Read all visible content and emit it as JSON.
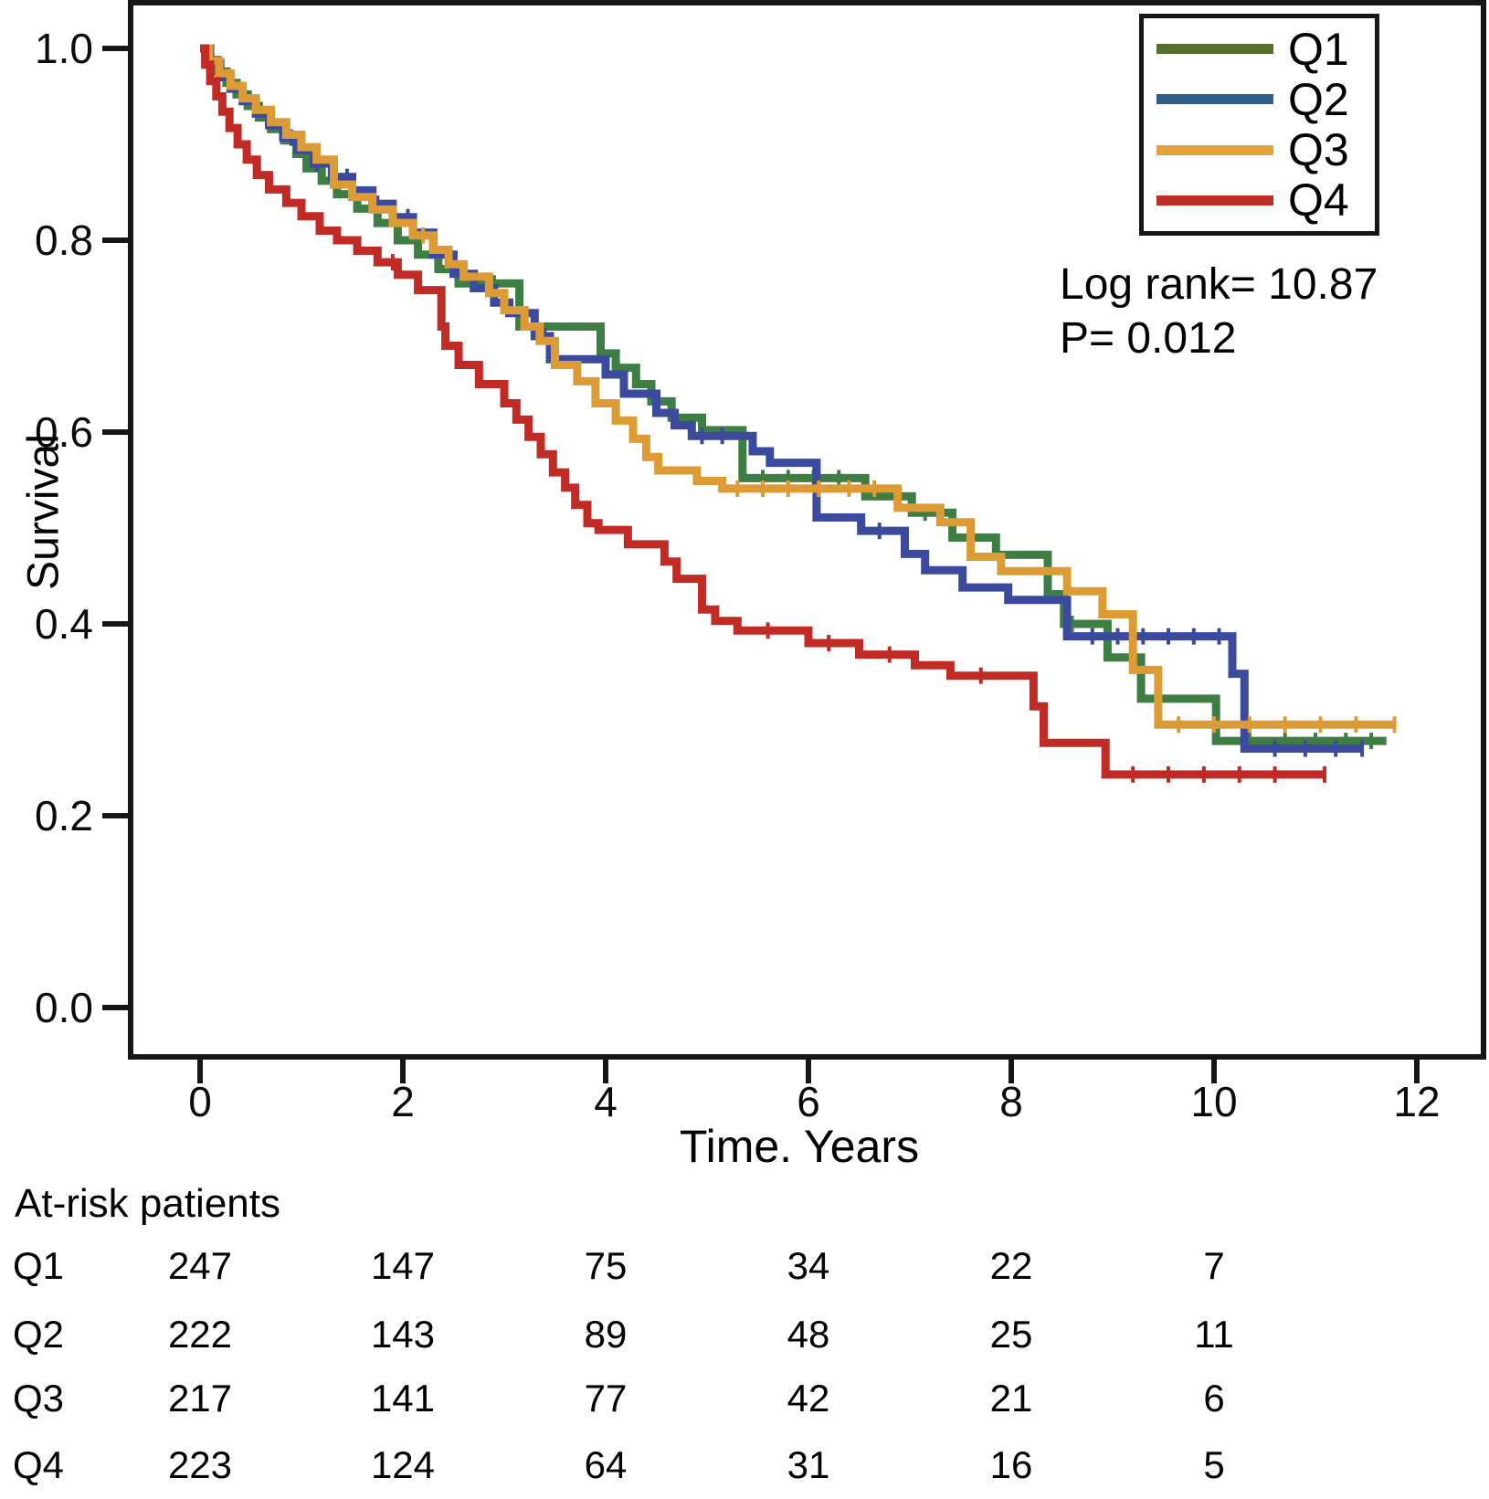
{
  "chart_data": {
    "type": "line",
    "subtype": "kaplan-meier-step-curves",
    "title": "",
    "xlabel": "Time. Years",
    "ylabel": "Survival",
    "xlim": [
      -0.68,
      12.66
    ],
    "ylim": [
      -0.05,
      1.05
    ],
    "xticks": [
      0,
      2,
      4,
      6,
      8,
      10,
      12
    ],
    "yticks": [
      0.0,
      0.2,
      0.4,
      0.6,
      0.8,
      1.0
    ],
    "grid": "off",
    "legend_position": "top-right",
    "frame_color": "#161616",
    "annotations": [
      "Log rank= 10.87",
      "P= 0.012"
    ],
    "series": [
      {
        "name": "Q1",
        "color": "#3e7d44",
        "legend_color": "#546f2c",
        "steps": [
          [
            0,
            1.0
          ],
          [
            0.08,
            0.988
          ],
          [
            0.17,
            0.976
          ],
          [
            0.26,
            0.964
          ],
          [
            0.36,
            0.952
          ],
          [
            0.47,
            0.94
          ],
          [
            0.58,
            0.928
          ],
          [
            0.7,
            0.916
          ],
          [
            0.83,
            0.904
          ],
          [
            0.95,
            0.89
          ],
          [
            1.05,
            0.875
          ],
          [
            1.2,
            0.862
          ],
          [
            1.35,
            0.848
          ],
          [
            1.55,
            0.833
          ],
          [
            1.75,
            0.818
          ],
          [
            1.95,
            0.8
          ],
          [
            2.15,
            0.785
          ],
          [
            2.35,
            0.77
          ],
          [
            2.55,
            0.755
          ],
          [
            3.15,
            0.71
          ],
          [
            3.95,
            0.682
          ],
          [
            4.1,
            0.667
          ],
          [
            4.3,
            0.65
          ],
          [
            4.45,
            0.632
          ],
          [
            4.65,
            0.615
          ],
          [
            4.95,
            0.602
          ],
          [
            5.35,
            0.552
          ],
          [
            6.56,
            0.533
          ],
          [
            7.02,
            0.516
          ],
          [
            7.42,
            0.49
          ],
          [
            7.85,
            0.472
          ],
          [
            8.36,
            0.431
          ],
          [
            8.52,
            0.4
          ],
          [
            8.95,
            0.365
          ],
          [
            9.28,
            0.322
          ],
          [
            10.02,
            0.278
          ],
          [
            11.7,
            0.278
          ]
        ],
        "censors": [
          2.9,
          5.55,
          5.8,
          6.05,
          6.3,
          6.9,
          7.15,
          8.6,
          10.35,
          10.7,
          11.0,
          11.3,
          11.55
        ]
      },
      {
        "name": "Q2",
        "color": "#3c4a9e",
        "legend_color": "#2f5f8a",
        "steps": [
          [
            0,
            1.0
          ],
          [
            0.1,
            0.985
          ],
          [
            0.2,
            0.97
          ],
          [
            0.3,
            0.958
          ],
          [
            0.42,
            0.945
          ],
          [
            0.55,
            0.932
          ],
          [
            0.68,
            0.92
          ],
          [
            0.82,
            0.907
          ],
          [
            0.96,
            0.894
          ],
          [
            1.12,
            0.88
          ],
          [
            1.3,
            0.866
          ],
          [
            1.5,
            0.852
          ],
          [
            1.7,
            0.838
          ],
          [
            1.9,
            0.824
          ],
          [
            2.1,
            0.808
          ],
          [
            2.3,
            0.785
          ],
          [
            2.5,
            0.765
          ],
          [
            2.7,
            0.75
          ],
          [
            2.9,
            0.735
          ],
          [
            3.05,
            0.724
          ],
          [
            3.3,
            0.7
          ],
          [
            3.45,
            0.676
          ],
          [
            4.0,
            0.66
          ],
          [
            4.18,
            0.64
          ],
          [
            4.5,
            0.62
          ],
          [
            4.68,
            0.607
          ],
          [
            4.85,
            0.596
          ],
          [
            5.45,
            0.58
          ],
          [
            5.62,
            0.568
          ],
          [
            6.08,
            0.511
          ],
          [
            6.52,
            0.497
          ],
          [
            6.95,
            0.473
          ],
          [
            7.15,
            0.456
          ],
          [
            7.52,
            0.438
          ],
          [
            7.97,
            0.425
          ],
          [
            8.55,
            0.387
          ],
          [
            10.18,
            0.348
          ],
          [
            10.3,
            0.27
          ],
          [
            11.46,
            0.27
          ]
        ],
        "censors": [
          0.9,
          1.15,
          1.45,
          1.75,
          2.05,
          3.4,
          4.95,
          5.15,
          6.7,
          8.8,
          9.05,
          9.3,
          9.55,
          9.8,
          10.05,
          10.6,
          10.9,
          11.2,
          11.46
        ]
      },
      {
        "name": "Q3",
        "color": "#dd9b35",
        "legend_color": "#e2a33c",
        "steps": [
          [
            0,
            1.0
          ],
          [
            0.09,
            0.987
          ],
          [
            0.19,
            0.974
          ],
          [
            0.3,
            0.961
          ],
          [
            0.42,
            0.948
          ],
          [
            0.55,
            0.936
          ],
          [
            0.7,
            0.923
          ],
          [
            0.85,
            0.91
          ],
          [
            1.0,
            0.897
          ],
          [
            1.15,
            0.884
          ],
          [
            1.32,
            0.858
          ],
          [
            1.5,
            0.845
          ],
          [
            1.7,
            0.832
          ],
          [
            1.9,
            0.818
          ],
          [
            2.1,
            0.805
          ],
          [
            2.3,
            0.79
          ],
          [
            2.45,
            0.775
          ],
          [
            2.6,
            0.762
          ],
          [
            2.85,
            0.745
          ],
          [
            3.0,
            0.727
          ],
          [
            3.2,
            0.71
          ],
          [
            3.35,
            0.695
          ],
          [
            3.5,
            0.67
          ],
          [
            3.72,
            0.653
          ],
          [
            3.9,
            0.63
          ],
          [
            4.1,
            0.612
          ],
          [
            4.27,
            0.593
          ],
          [
            4.4,
            0.574
          ],
          [
            4.52,
            0.56
          ],
          [
            4.9,
            0.549
          ],
          [
            5.15,
            0.541
          ],
          [
            6.88,
            0.521
          ],
          [
            7.3,
            0.506
          ],
          [
            7.6,
            0.47
          ],
          [
            7.9,
            0.455
          ],
          [
            8.55,
            0.434
          ],
          [
            8.9,
            0.41
          ],
          [
            9.2,
            0.352
          ],
          [
            9.45,
            0.295
          ],
          [
            11.78,
            0.295
          ]
        ],
        "censors": [
          2.2,
          5.3,
          5.55,
          5.8,
          6.1,
          6.4,
          6.65,
          9.65,
          10.0,
          10.35,
          10.7,
          11.05,
          11.4,
          11.78
        ]
      },
      {
        "name": "Q4",
        "color": "#c02b26",
        "legend_color": "#bf2e26",
        "steps": [
          [
            0,
            1.0
          ],
          [
            0.05,
            0.983
          ],
          [
            0.1,
            0.966
          ],
          [
            0.16,
            0.95
          ],
          [
            0.22,
            0.934
          ],
          [
            0.29,
            0.917
          ],
          [
            0.37,
            0.9
          ],
          [
            0.46,
            0.884
          ],
          [
            0.56,
            0.868
          ],
          [
            0.68,
            0.853
          ],
          [
            0.85,
            0.839
          ],
          [
            1.0,
            0.825
          ],
          [
            1.18,
            0.81
          ],
          [
            1.35,
            0.8
          ],
          [
            1.55,
            0.789
          ],
          [
            1.75,
            0.777
          ],
          [
            1.95,
            0.764
          ],
          [
            2.15,
            0.748
          ],
          [
            2.38,
            0.71
          ],
          [
            2.42,
            0.69
          ],
          [
            2.55,
            0.67
          ],
          [
            2.75,
            0.65
          ],
          [
            3.0,
            0.63
          ],
          [
            3.12,
            0.613
          ],
          [
            3.24,
            0.595
          ],
          [
            3.36,
            0.577
          ],
          [
            3.48,
            0.558
          ],
          [
            3.6,
            0.542
          ],
          [
            3.7,
            0.524
          ],
          [
            3.82,
            0.505
          ],
          [
            3.93,
            0.498
          ],
          [
            4.22,
            0.483
          ],
          [
            4.58,
            0.465
          ],
          [
            4.7,
            0.447
          ],
          [
            4.95,
            0.415
          ],
          [
            5.08,
            0.403
          ],
          [
            5.3,
            0.393
          ],
          [
            6.0,
            0.38
          ],
          [
            6.5,
            0.368
          ],
          [
            7.05,
            0.357
          ],
          [
            7.4,
            0.346
          ],
          [
            8.22,
            0.314
          ],
          [
            8.32,
            0.276
          ],
          [
            8.93,
            0.243
          ],
          [
            11.09,
            0.243
          ]
        ],
        "censors": [
          1.9,
          5.6,
          6.2,
          6.8,
          7.7,
          9.2,
          9.55,
          9.9,
          10.25,
          10.6,
          11.09
        ]
      }
    ]
  },
  "at_risk": {
    "title": "At-risk patients",
    "times": [
      0,
      2,
      4,
      6,
      8,
      10
    ],
    "rows": [
      {
        "label": "Q1",
        "counts": [
          247,
          147,
          75,
          34,
          22,
          7
        ]
      },
      {
        "label": "Q2",
        "counts": [
          222,
          143,
          89,
          48,
          25,
          11
        ]
      },
      {
        "label": "Q3",
        "counts": [
          217,
          141,
          77,
          42,
          21,
          6
        ]
      },
      {
        "label": "Q4",
        "counts": [
          223,
          124,
          64,
          31,
          16,
          5
        ]
      }
    ]
  }
}
